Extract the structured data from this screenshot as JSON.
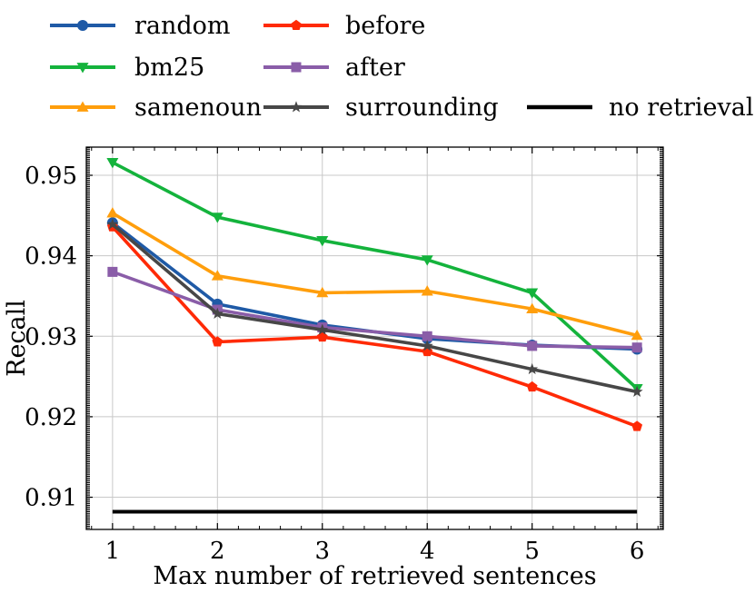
{
  "chart_data": {
    "type": "line",
    "x": [
      1,
      2,
      3,
      4,
      5,
      6
    ],
    "xlabel": "Max number of retrieved sentences",
    "ylabel": "Recall",
    "xlim": [
      0.75,
      6.25
    ],
    "ylim": [
      0.906,
      0.9535
    ],
    "xticks": [
      "1",
      "2",
      "3",
      "4",
      "5",
      "6"
    ],
    "yticks": [
      0.91,
      0.92,
      0.93,
      0.94,
      0.95
    ],
    "ytick_labels": [
      "0.91",
      "0.92",
      "0.93",
      "0.94",
      "0.95"
    ],
    "grid": true,
    "legend_position": "top",
    "series": [
      {
        "name": "random",
        "color": "#1f5aa6",
        "marker": "circle",
        "values": [
          0.9441,
          0.934,
          0.9314,
          0.9297,
          0.9289,
          0.9284
        ]
      },
      {
        "name": "bm25",
        "color": "#14b33c",
        "marker": "triangle-down",
        "values": [
          0.9516,
          0.9448,
          0.9419,
          0.9395,
          0.9354,
          0.9235
        ]
      },
      {
        "name": "samenoun",
        "color": "#ff9e0c",
        "marker": "triangle-up",
        "values": [
          0.9453,
          0.9375,
          0.9354,
          0.9356,
          0.9334,
          0.9301
        ]
      },
      {
        "name": "before",
        "color": "#ff2a06",
        "marker": "pentagon",
        "values": [
          0.9436,
          0.9293,
          0.9299,
          0.9281,
          0.9237,
          0.9188
        ]
      },
      {
        "name": "after",
        "color": "#8a5da8",
        "marker": "square",
        "values": [
          0.938,
          0.9333,
          0.9311,
          0.93,
          0.9288,
          0.9286
        ]
      },
      {
        "name": "surrounding",
        "color": "#474747",
        "marker": "star",
        "values": [
          0.9439,
          0.9328,
          0.9308,
          0.9288,
          0.9259,
          0.9231
        ]
      },
      {
        "name": "no retrieval",
        "color": "#000000",
        "marker": "none",
        "values": [
          0.9082,
          0.9082,
          0.9082,
          0.9082,
          0.9082,
          0.9082
        ]
      }
    ]
  }
}
